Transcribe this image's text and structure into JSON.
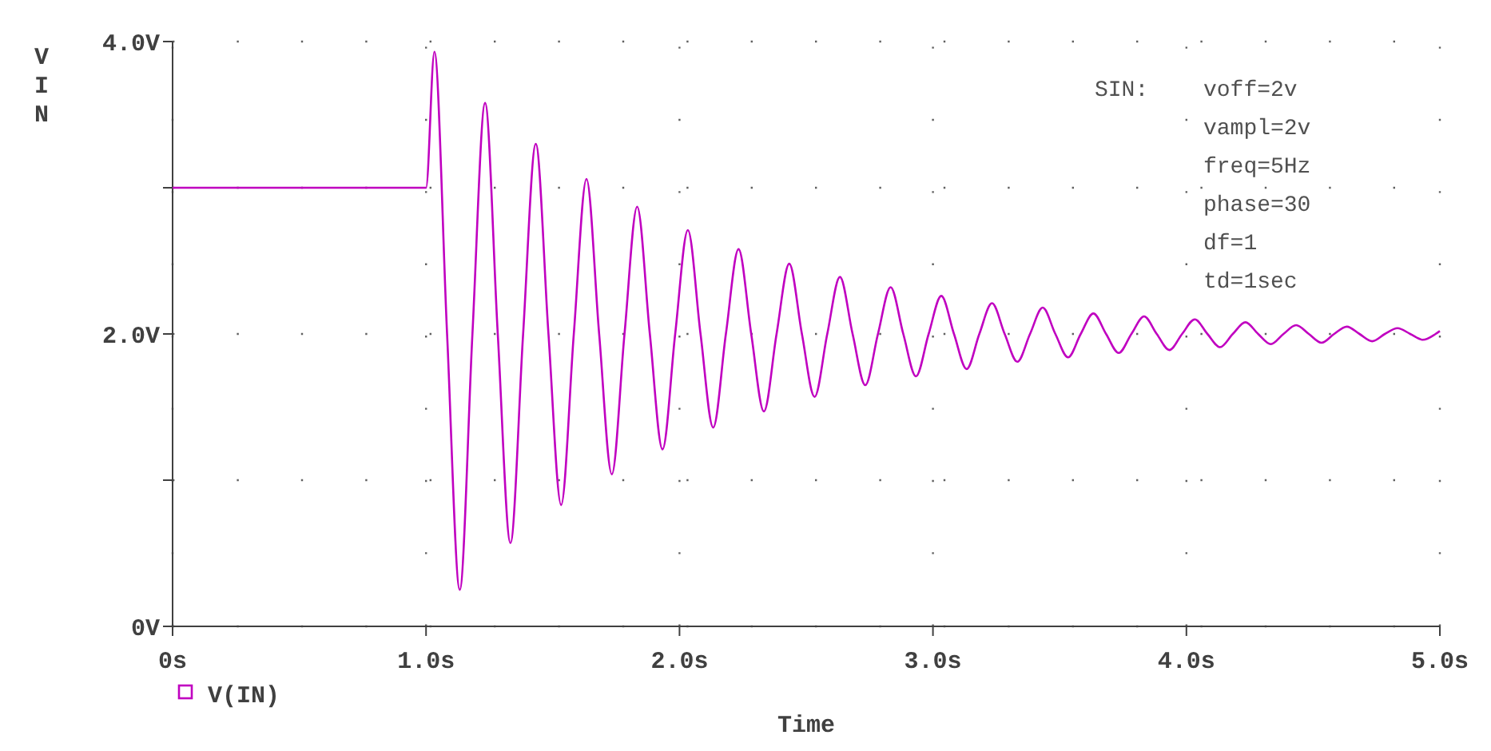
{
  "chart_data": {
    "type": "line",
    "xlabel": "Time",
    "ylabel": "VIN",
    "xlim": [
      0,
      5
    ],
    "ylim": [
      0,
      4
    ],
    "xticks": [
      {
        "value": 0,
        "label": "0s"
      },
      {
        "value": 1,
        "label": "1.0s"
      },
      {
        "value": 2,
        "label": "2.0s"
      },
      {
        "value": 3,
        "label": "3.0s"
      },
      {
        "value": 4,
        "label": "4.0s"
      },
      {
        "value": 5,
        "label": "5.0s"
      }
    ],
    "yticks": [
      {
        "value": 0,
        "label": "0V"
      },
      {
        "value": 1,
        "label": null
      },
      {
        "value": 2,
        "label": "2.0V"
      },
      {
        "value": 3,
        "label": null
      },
      {
        "value": 4,
        "label": "4.0V"
      }
    ],
    "grid": true,
    "legend": "bottom left",
    "marker": "none",
    "line_style": "solid",
    "annotations": [
      "SIN:",
      "voff=2v",
      "vampl=2v",
      "freq=5Hz",
      "phase=30",
      "df=1",
      "td=1sec"
    ],
    "series": [
      {
        "name": "V(IN)",
        "color": "#c000c0",
        "x": [
          0,
          1.0,
          1.033,
          1.083,
          1.133,
          1.183,
          1.233,
          1.283,
          1.333,
          1.383,
          1.433,
          1.483,
          1.533,
          1.583,
          1.633,
          1.683,
          1.733,
          1.783,
          1.833,
          1.883,
          1.933,
          1.983,
          2.033,
          2.083,
          2.133,
          2.183,
          2.233,
          2.283,
          2.333,
          2.383,
          2.433,
          2.483,
          2.533,
          2.583,
          2.633,
          2.683,
          2.733,
          2.783,
          2.833,
          2.883,
          2.933,
          2.983,
          3.033,
          3.083,
          3.133,
          3.183,
          3.233,
          3.283,
          3.333,
          3.383,
          3.433,
          3.483,
          3.533,
          3.583,
          3.633,
          3.683,
          3.733,
          3.783,
          3.833,
          3.883,
          3.933,
          3.983,
          4.033,
          4.083,
          4.133,
          4.183,
          4.233,
          4.283,
          4.333,
          4.383,
          4.433,
          4.483,
          4.533,
          4.583,
          4.633,
          4.683,
          4.733,
          4.783,
          4.833,
          4.883,
          4.933,
          4.983,
          5.0
        ],
        "values": [
          3,
          3,
          3.93,
          2,
          0.25,
          2,
          3.58,
          2,
          0.57,
          2,
          3.3,
          2,
          0.83,
          2,
          3.06,
          2,
          1.04,
          2,
          2.87,
          2,
          1.21,
          2,
          2.71,
          2,
          1.36,
          2,
          2.58,
          2,
          1.47,
          2,
          2.48,
          2,
          1.57,
          2,
          2.39,
          2,
          1.65,
          2,
          2.32,
          2,
          1.71,
          2,
          2.26,
          2,
          1.76,
          2,
          2.21,
          2,
          1.81,
          2,
          2.18,
          2,
          1.84,
          2,
          2.14,
          2,
          1.87,
          2,
          2.12,
          2,
          1.89,
          2,
          2.1,
          2,
          1.91,
          2,
          2.08,
          2,
          1.93,
          2,
          2.06,
          2,
          1.94,
          2,
          2.05,
          2,
          1.95,
          2,
          2.04,
          2,
          1.96,
          2,
          2.02
        ]
      }
    ]
  }
}
